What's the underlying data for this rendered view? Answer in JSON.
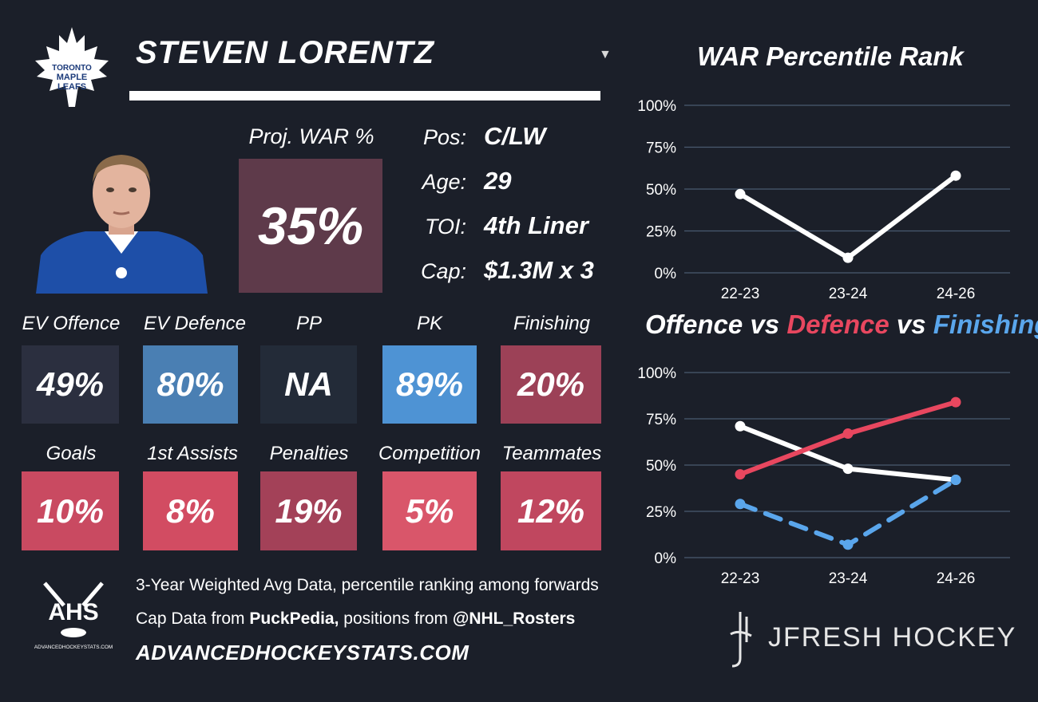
{
  "player": {
    "name": "STEVEN LORENTZ",
    "dropdown_icon": "caret-down-icon"
  },
  "team_logo_text": [
    "TORONTO",
    "MAPLE",
    "LEAFS"
  ],
  "projection": {
    "label": "Proj. WAR %",
    "value": "35%",
    "color": "#5e3a4a"
  },
  "info": [
    {
      "label": "Pos:",
      "value": "C/LW"
    },
    {
      "label": "Age:",
      "value": "29"
    },
    {
      "label": "TOI:",
      "value": "4th Liner"
    },
    {
      "label": "Cap:",
      "value": "$1.3M x 3"
    }
  ],
  "tiles_row1": [
    {
      "label": "EV Offence",
      "value": "49%",
      "color": "#2b2f3f"
    },
    {
      "label": "EV Defence",
      "value": "80%",
      "color": "#4a7fb3"
    },
    {
      "label": "PP",
      "value": "NA",
      "color": "#232b38"
    },
    {
      "label": "PK",
      "value": "89%",
      "color": "#4e93d4"
    },
    {
      "label": "Finishing",
      "value": "20%",
      "color": "#9c4157"
    }
  ],
  "tiles_row2": [
    {
      "label": "Goals",
      "value": "10%",
      "color": "#c94a61"
    },
    {
      "label": "1st Assists",
      "value": "8%",
      "color": "#d24c62"
    },
    {
      "label": "Penalties",
      "value": "19%",
      "color": "#a34158"
    },
    {
      "label": "Competition",
      "value": "5%",
      "color": "#d9566a"
    },
    {
      "label": "Teammates",
      "value": "12%",
      "color": "#c0475f"
    }
  ],
  "footer": {
    "ahs_logo_text": "AHS",
    "ahs_logo_sub": "ADVANCEDHOCKEYSTATS.COM",
    "line1": "3-Year Weighted Avg Data, percentile ranking among forwards",
    "line2_prefix": "Cap Data from ",
    "line2_bold1": "PuckPedia,",
    "line2_mid": " positions from ",
    "line2_bold2": "@NHL_Rosters",
    "site": "ADVANCEDHOCKEYSTATS.COM"
  },
  "brand": {
    "name": "JFRESH HOCKEY"
  },
  "chart_data": [
    {
      "type": "line",
      "title": "WAR Percentile Rank",
      "categories": [
        "22-23",
        "23-24",
        "24-26"
      ],
      "yticks": [
        "0%",
        "25%",
        "50%",
        "75%",
        "100%"
      ],
      "ylim": [
        0,
        100
      ],
      "grid": true,
      "series": [
        {
          "values": [
            47,
            9,
            58
          ],
          "color": "#ffffff",
          "dashed": false
        }
      ]
    },
    {
      "type": "line",
      "title_parts": [
        {
          "text": "Offence",
          "color": "#ffffff"
        },
        {
          "text": " vs ",
          "color": "#ffffff"
        },
        {
          "text": "Defence",
          "color": "#e8475f"
        },
        {
          "text": " vs ",
          "color": "#ffffff"
        },
        {
          "text": "Finishing",
          "color": "#5aa6ec"
        }
      ],
      "categories": [
        "22-23",
        "23-24",
        "24-26"
      ],
      "yticks": [
        "0%",
        "25%",
        "50%",
        "75%",
        "100%"
      ],
      "ylim": [
        0,
        100
      ],
      "grid": true,
      "series": [
        {
          "name": "Offence",
          "values": [
            71,
            48,
            42
          ],
          "color": "#ffffff",
          "dashed": false
        },
        {
          "name": "Defence",
          "values": [
            45,
            67,
            84
          ],
          "color": "#e8475f",
          "dashed": false
        },
        {
          "name": "Finishing",
          "values": [
            29,
            7,
            42
          ],
          "color": "#5aa6ec",
          "dashed": true
        }
      ]
    }
  ]
}
